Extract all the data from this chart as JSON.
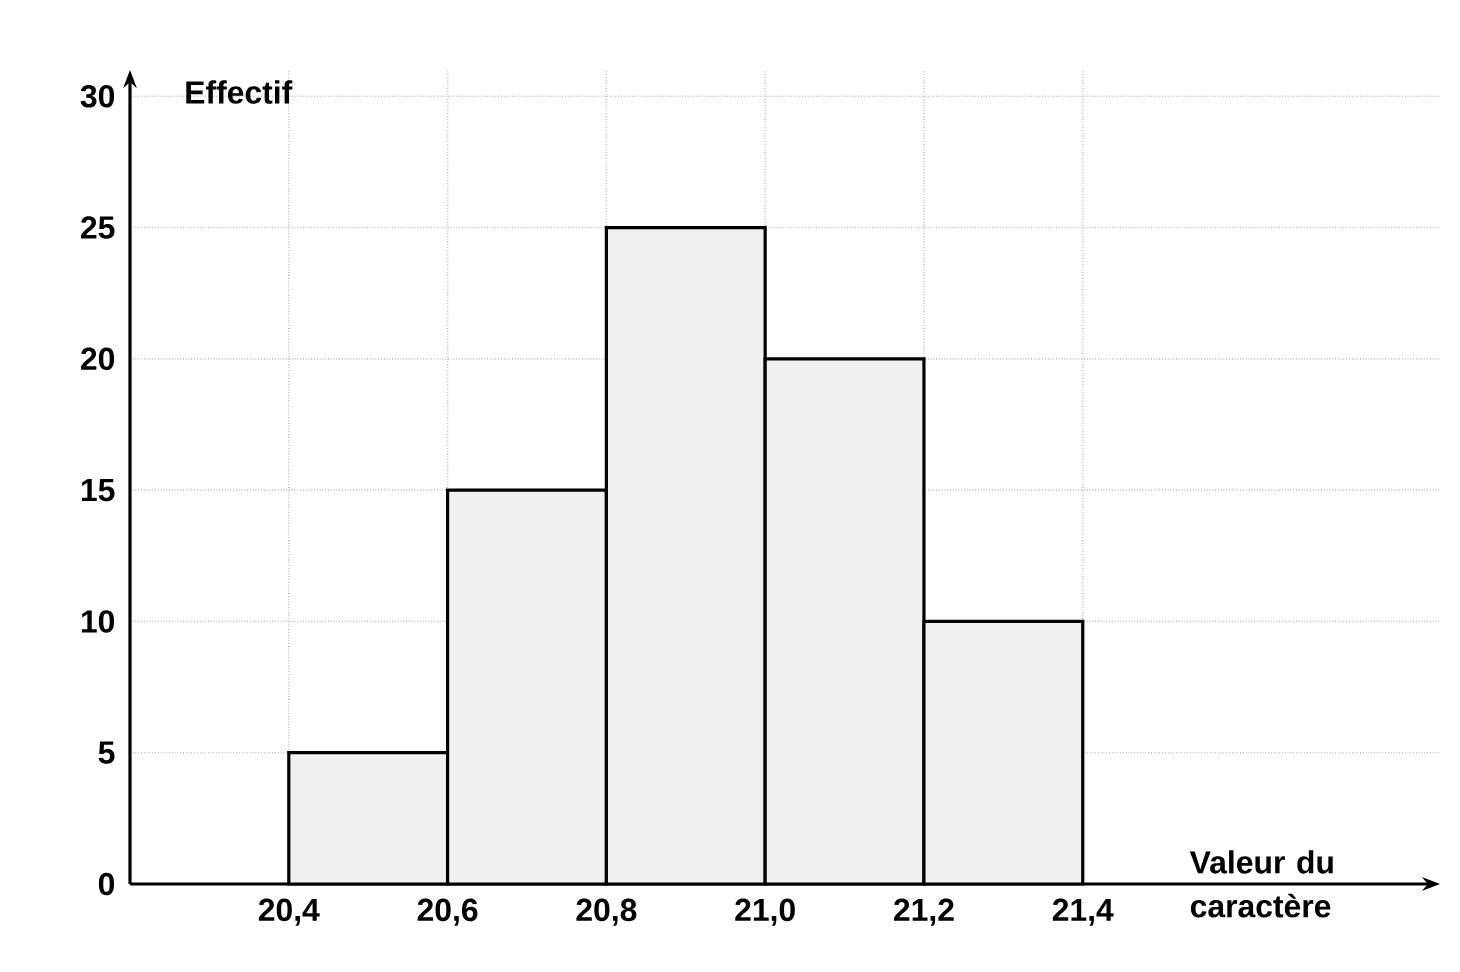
{
  "chart_data": {
    "type": "histogram",
    "xlabel": "Valeur du caractère",
    "ylabel": "Effectif",
    "bins": [
      20.4,
      20.6,
      20.8,
      21.0,
      21.2,
      21.4
    ],
    "values": [
      5,
      15,
      25,
      20,
      10
    ],
    "color": "#f0f0f0",
    "xlim": [
      20.2,
      21.85
    ],
    "ylim": [
      0,
      31
    ],
    "xticks": [
      {
        "value": 20.4,
        "label": "20,4"
      },
      {
        "value": 20.6,
        "label": "20,6"
      },
      {
        "value": 20.8,
        "label": "20,8"
      },
      {
        "value": 21.0,
        "label": "21,0"
      },
      {
        "value": 21.2,
        "label": "21,2"
      },
      {
        "value": 21.4,
        "label": "21,4"
      }
    ],
    "yticks": [
      0,
      5,
      10,
      15,
      20,
      25,
      30
    ],
    "grid": true
  }
}
